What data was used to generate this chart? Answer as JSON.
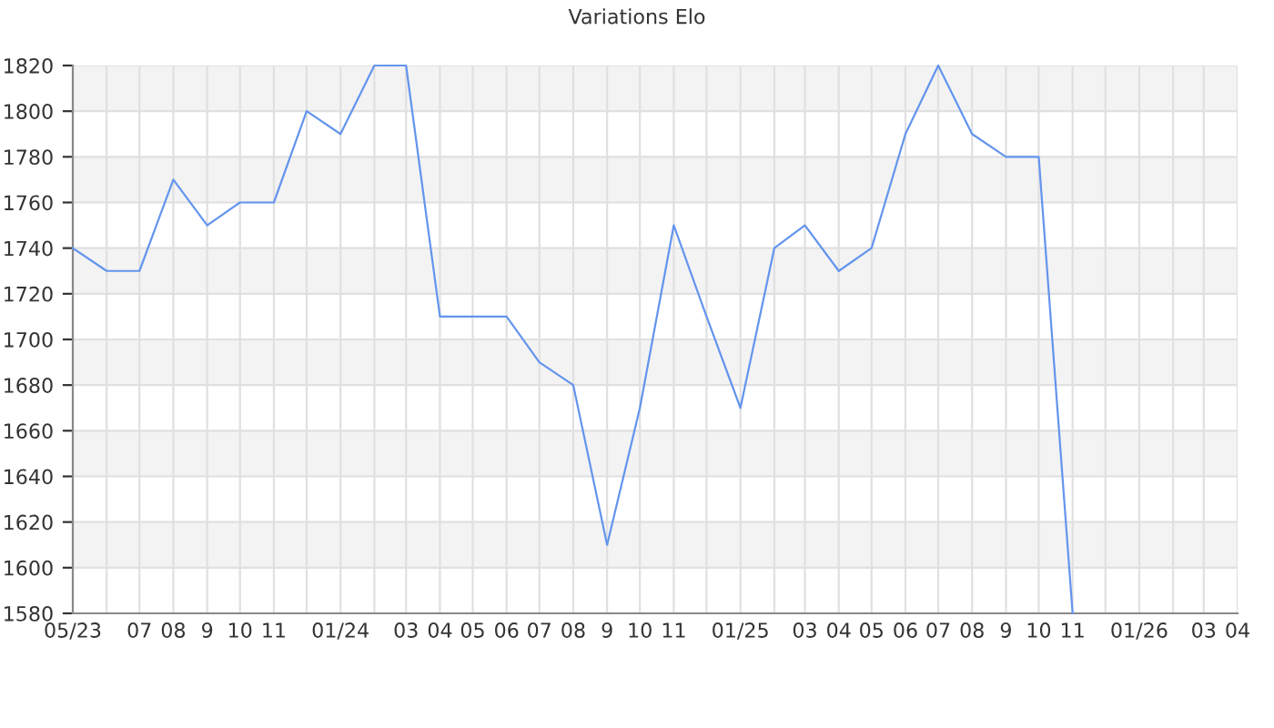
{
  "chart_data": {
    "type": "line",
    "title": "Variations Elo",
    "x": [
      "2023-05",
      "2023-06",
      "2023-07",
      "2023-08",
      "2023-09",
      "2023-10",
      "2023-11",
      "2023-12",
      "2024-01",
      "2024-02",
      "2024-03",
      "2024-04",
      "2024-05",
      "2024-06",
      "2024-07",
      "2024-08",
      "2024-09",
      "2024-10",
      "2024-11",
      "2024-12",
      "2025-01",
      "2025-02",
      "2025-03",
      "2025-04",
      "2025-05",
      "2025-06",
      "2025-07",
      "2025-08",
      "2025-09",
      "2025-10",
      "2025-11"
    ],
    "series": [
      {
        "color": "#6495ed",
        "values": [
          1740,
          1730,
          1730,
          1770,
          1750,
          1760,
          1760,
          1800,
          1790,
          1820,
          1820,
          1710,
          1710,
          1710,
          1690,
          1680,
          1610,
          1670,
          1750,
          1710,
          1670,
          1740,
          1750,
          1730,
          1740,
          1790,
          1820,
          1790,
          1780,
          1780,
          1580
        ]
      }
    ],
    "xlim": [
      "2023-05",
      "2026-04"
    ],
    "xticks": [
      {
        "value": "2023-05",
        "label": "05/23"
      },
      {
        "value": "2023-06",
        "label": null
      },
      {
        "value": "2023-07",
        "label": "07"
      },
      {
        "value": "2023-08",
        "label": "08"
      },
      {
        "value": "2023-09",
        "label": "9"
      },
      {
        "value": "2023-10",
        "label": "10"
      },
      {
        "value": "2023-11",
        "label": "11"
      },
      {
        "value": "2023-12",
        "label": null
      },
      {
        "value": "2024-01",
        "label": "01/24"
      },
      {
        "value": "2024-02",
        "label": null
      },
      {
        "value": "2024-03",
        "label": "03"
      },
      {
        "value": "2024-04",
        "label": "04"
      },
      {
        "value": "2024-05",
        "label": "05"
      },
      {
        "value": "2024-06",
        "label": "06"
      },
      {
        "value": "2024-07",
        "label": "07"
      },
      {
        "value": "2024-08",
        "label": "08"
      },
      {
        "value": "2024-09",
        "label": "9"
      },
      {
        "value": "2024-10",
        "label": "10"
      },
      {
        "value": "2024-11",
        "label": "11"
      },
      {
        "value": "2024-12",
        "label": null
      },
      {
        "value": "2025-01",
        "label": "01/25"
      },
      {
        "value": "2025-02",
        "label": null
      },
      {
        "value": "2025-03",
        "label": "03"
      },
      {
        "value": "2025-04",
        "label": "04"
      },
      {
        "value": "2025-05",
        "label": "05"
      },
      {
        "value": "2025-06",
        "label": "06"
      },
      {
        "value": "2025-07",
        "label": "07"
      },
      {
        "value": "2025-08",
        "label": "08"
      },
      {
        "value": "2025-09",
        "label": "9"
      },
      {
        "value": "2025-10",
        "label": "10"
      },
      {
        "value": "2025-11",
        "label": "11"
      },
      {
        "value": "2025-12",
        "label": null
      },
      {
        "value": "2026-01",
        "label": "01/26"
      },
      {
        "value": "2026-02",
        "label": null
      },
      {
        "value": "2026-03",
        "label": "03"
      },
      {
        "value": "2026-04",
        "label": "04"
      }
    ],
    "ylim": [
      1580,
      1820
    ],
    "yticks": [
      1580,
      1600,
      1620,
      1640,
      1660,
      1680,
      1700,
      1720,
      1740,
      1760,
      1780,
      1800,
      1820
    ],
    "grid": true,
    "marker": "none",
    "line_style": "solid",
    "legend": false
  }
}
